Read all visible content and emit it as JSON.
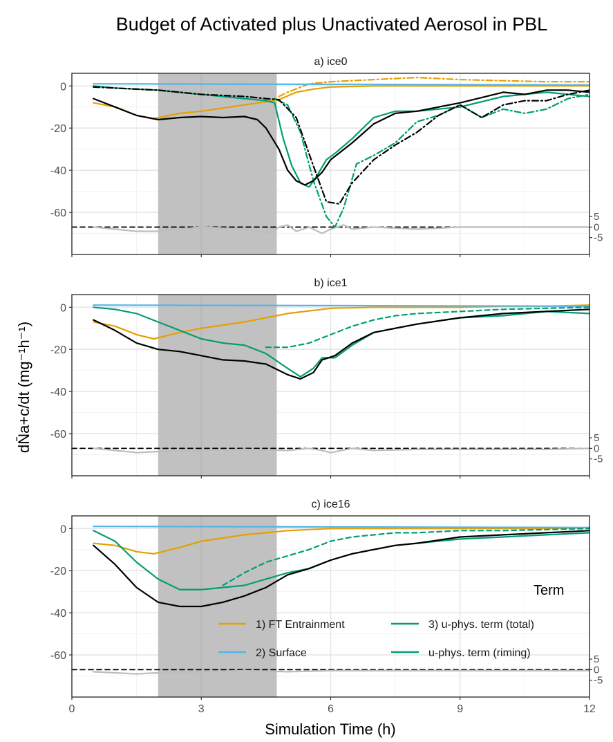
{
  "title": "Budget of Activated plus Unactivated Aerosol in PBL",
  "xlabel": "Simulation Time (h)",
  "ylabel": "dN̄a+c/dt (mg⁻¹h⁻¹)",
  "colors": {
    "ft_entrainment": "#E69F00",
    "surface": "#56B4E9",
    "uphys": "#009E73",
    "total": "#000000",
    "residual": "#bdbdbd",
    "shade": "#bebebe"
  },
  "legend": {
    "title": "Term",
    "entries": [
      {
        "label": "1) FT Entrainment",
        "color": "#E69F00"
      },
      {
        "label": "3) u-phys. term (total)",
        "color": "#009E73"
      },
      {
        "label": "2) Surface",
        "color": "#56B4E9"
      },
      {
        "label": "u-phys. term (riming)",
        "color": "#009E73"
      }
    ]
  },
  "chart_data": [
    {
      "type": "line",
      "title": "a) ice0",
      "xlim": [
        0,
        12
      ],
      "ylim": [
        -80,
        6
      ],
      "xticks": [
        "0",
        "3",
        "6",
        "9",
        "12"
      ],
      "yticks": [
        "0",
        "-20",
        "-40",
        "-60"
      ],
      "right_ticks": [
        "5",
        "0",
        "-5"
      ],
      "shade": [
        2,
        4.75
      ],
      "series": [
        {
          "key": "ft",
          "color": "#E69F00",
          "dash": "solid",
          "x": [
            0.5,
            1,
            1.5,
            1.9,
            2.5,
            3,
            3.5,
            4,
            4.5,
            4.8,
            5.2,
            5.6,
            6,
            7,
            8,
            9,
            10,
            12
          ],
          "y": [
            -8,
            -10,
            -14,
            -15.5,
            -13,
            -12,
            -10.5,
            -9,
            -7.5,
            -6.5,
            -3,
            -1.5,
            -0.5,
            0,
            0,
            0,
            0,
            0
          ]
        },
        {
          "key": "ft_dash",
          "color": "#E69F00",
          "dash": "dashdot",
          "x": [
            4.8,
            5,
            5.5,
            6,
            7,
            7.5,
            8,
            9,
            10,
            11,
            12
          ],
          "y": [
            -5,
            -3,
            1,
            2,
            3,
            3.5,
            4,
            3,
            2.5,
            2,
            2
          ]
        },
        {
          "key": "surf",
          "color": "#56B4E9",
          "dash": "solid",
          "x": [
            0.5,
            12
          ],
          "y": [
            1,
            0.5
          ]
        },
        {
          "key": "uphys",
          "color": "#009E73",
          "dash": "solid",
          "x": [
            0.5,
            1,
            2,
            3,
            4,
            4.5,
            4.7,
            4.9,
            5.1,
            5.3,
            5.5,
            5.7,
            5.9,
            6.1,
            6.5,
            7,
            7.5,
            8,
            9,
            10,
            11,
            12
          ],
          "y": [
            0,
            -1,
            -2,
            -4,
            -6,
            -7,
            -8,
            -25,
            -38,
            -46,
            -48,
            -42,
            -35,
            -32,
            -25,
            -15,
            -12,
            -12,
            -10,
            -5,
            -3,
            -5
          ]
        },
        {
          "key": "uphys_dash",
          "color": "#009E73",
          "dash": "dashdot",
          "x": [
            4.7,
            5,
            5.3,
            5.6,
            5.9,
            6.1,
            6.3,
            6.6,
            7,
            7.5,
            8,
            8.5,
            9,
            9.5,
            10,
            10.5,
            11,
            11.5,
            12
          ],
          "y": [
            -6,
            -9,
            -22,
            -45,
            -62,
            -67,
            -58,
            -37,
            -33,
            -27,
            -17,
            -14,
            -9,
            -15,
            -11,
            -13,
            -11,
            -6,
            -4
          ]
        },
        {
          "key": "total",
          "color": "#000000",
          "dash": "solid",
          "x": [
            0.5,
            1,
            1.5,
            2,
            2.5,
            3,
            3.5,
            4,
            4.3,
            4.5,
            4.8,
            5,
            5.2,
            5.4,
            5.6,
            5.8,
            6,
            6.5,
            7,
            7.5,
            8,
            9,
            10,
            10.5,
            11,
            11.5,
            12
          ],
          "y": [
            -6,
            -10,
            -14,
            -16,
            -15,
            -14.5,
            -15,
            -14.5,
            -16,
            -20,
            -30,
            -40,
            -45,
            -47,
            -45,
            -41,
            -35,
            -27,
            -18,
            -13,
            -12,
            -8,
            -3,
            -4,
            -2,
            -2,
            -3
          ]
        },
        {
          "key": "total_dash",
          "color": "#000000",
          "dash": "dashdot",
          "x": [
            0.5,
            2,
            3,
            4,
            4.5,
            4.8,
            5.2,
            5.6,
            5.9,
            6.2,
            6.5,
            7,
            7.5,
            8,
            8.5,
            9,
            9.5,
            10,
            10.5,
            11,
            11.5,
            12
          ],
          "y": [
            -0.5,
            -2,
            -4,
            -5,
            -6,
            -6.5,
            -15,
            -38,
            -55,
            -56,
            -46,
            -35,
            -28,
            -22,
            -14,
            -9,
            -15,
            -9,
            -7,
            -7,
            -4,
            -2
          ]
        },
        {
          "key": "zero",
          "color": "#000000",
          "dash": "dashed",
          "x": [
            0,
            12
          ],
          "y": [
            -67,
            -67
          ]
        },
        {
          "key": "resid",
          "color": "#bdbdbd",
          "dash": "solid",
          "x": [
            0.5,
            1,
            1.5,
            2,
            3,
            4,
            4.6,
            4.8,
            5,
            5.2,
            5.5,
            5.8,
            6,
            6.3,
            6.5,
            7,
            8,
            9,
            10,
            11,
            12
          ],
          "y": [
            -67,
            -68,
            -69,
            -69,
            -67,
            -68,
            -70,
            -67,
            -66,
            -69,
            -67,
            -70,
            -68,
            -66,
            -68,
            -67,
            -68,
            -67,
            -67,
            -67,
            -67
          ]
        }
      ]
    },
    {
      "type": "line",
      "title": "b) ice1",
      "xlim": [
        0,
        12
      ],
      "ylim": [
        -80,
        6
      ],
      "xticks": [
        "0",
        "3",
        "6",
        "9",
        "12"
      ],
      "yticks": [
        "0",
        "-20",
        "-40",
        "-60"
      ],
      "right_ticks": [
        "5",
        "0",
        "-5"
      ],
      "shade": [
        2,
        4.75
      ],
      "series": [
        {
          "key": "ft",
          "color": "#E69F00",
          "dash": "solid",
          "x": [
            0.5,
            1,
            1.5,
            1.9,
            2.5,
            3,
            4,
            5,
            6,
            7,
            8,
            9,
            10,
            11,
            12
          ],
          "y": [
            -7,
            -9,
            -13,
            -15,
            -12,
            -10,
            -7,
            -3,
            -0.5,
            0,
            0,
            0,
            0.5,
            0.5,
            1
          ]
        },
        {
          "key": "surf",
          "color": "#56B4E9",
          "dash": "solid",
          "x": [
            0.5,
            12
          ],
          "y": [
            1,
            0.5
          ]
        },
        {
          "key": "uphys",
          "color": "#009E73",
          "dash": "solid",
          "x": [
            0.5,
            1,
            1.5,
            2,
            2.5,
            3,
            3.5,
            4,
            4.5,
            5,
            5.3,
            5.6,
            5.8,
            6.1,
            6.5,
            7,
            7.5,
            8,
            9,
            10,
            11,
            12
          ],
          "y": [
            0,
            -1,
            -3,
            -7,
            -11,
            -15,
            -17,
            -18,
            -22,
            -29,
            -33,
            -29,
            -24,
            -24,
            -18,
            -12,
            -10,
            -8,
            -5,
            -4,
            -2,
            -3
          ]
        },
        {
          "key": "uphys_dash",
          "color": "#009E73",
          "dash": "dashed",
          "x": [
            4.5,
            5,
            5.5,
            6,
            6.5,
            7,
            7.5,
            8,
            9,
            10,
            11,
            12
          ],
          "y": [
            -19,
            -19,
            -17,
            -13,
            -9,
            -6,
            -4,
            -3,
            -2,
            -1,
            -0.5,
            0
          ]
        },
        {
          "key": "total",
          "color": "#000000",
          "dash": "solid",
          "x": [
            0.5,
            1,
            1.5,
            2,
            2.5,
            3,
            3.5,
            4,
            4.5,
            5,
            5.3,
            5.6,
            5.8,
            6.1,
            6.5,
            7,
            7.5,
            8,
            9,
            10,
            11,
            12
          ],
          "y": [
            -6,
            -11,
            -17,
            -20,
            -21,
            -23,
            -25,
            -25.5,
            -27,
            -32,
            -34,
            -31,
            -25,
            -23,
            -17,
            -12,
            -10,
            -8,
            -5,
            -3,
            -2,
            -1
          ]
        },
        {
          "key": "zero",
          "color": "#000000",
          "dash": "dashed",
          "x": [
            0,
            12
          ],
          "y": [
            -67,
            -67
          ]
        },
        {
          "key": "resid",
          "color": "#bdbdbd",
          "dash": "solid",
          "x": [
            0.5,
            1,
            1.5,
            2,
            3,
            4,
            5,
            5.5,
            5.8,
            6,
            6.5,
            7,
            8,
            9,
            10,
            11,
            12
          ],
          "y": [
            -67,
            -68,
            -69,
            -68.5,
            -68,
            -67.5,
            -68,
            -67,
            -68,
            -69,
            -67,
            -68,
            -67.5,
            -67.5,
            -67.5,
            -67.5,
            -67
          ]
        }
      ]
    },
    {
      "type": "line",
      "title": "c) ice16",
      "xlim": [
        0,
        12
      ],
      "ylim": [
        -80,
        6
      ],
      "xticks": [
        "0",
        "3",
        "6",
        "9",
        "12"
      ],
      "yticks": [
        "0",
        "-20",
        "-40",
        "-60"
      ],
      "right_ticks": [
        "5",
        "0",
        "-5"
      ],
      "shade": [
        2,
        4.75
      ],
      "series": [
        {
          "key": "ft",
          "color": "#E69F00",
          "dash": "solid",
          "x": [
            0.5,
            1,
            1.5,
            1.9,
            2.5,
            3,
            4,
            5,
            6,
            7,
            8,
            9,
            10,
            11,
            12
          ],
          "y": [
            -7,
            -8,
            -11,
            -12,
            -9,
            -6,
            -3,
            -1,
            0,
            0,
            0,
            0,
            0,
            0,
            0.5
          ]
        },
        {
          "key": "surf",
          "color": "#56B4E9",
          "dash": "solid",
          "x": [
            0.5,
            12
          ],
          "y": [
            1,
            0.5
          ]
        },
        {
          "key": "uphys",
          "color": "#009E73",
          "dash": "solid",
          "x": [
            0.5,
            1,
            1.5,
            2,
            2.5,
            3,
            3.5,
            4,
            4.5,
            5,
            5.5,
            6,
            6.5,
            7,
            7.5,
            8,
            9,
            10,
            11,
            12
          ],
          "y": [
            -1,
            -6,
            -16,
            -24,
            -29,
            -29,
            -28,
            -27,
            -24,
            -21,
            -19,
            -15,
            -12,
            -10,
            -8,
            -7,
            -5,
            -4,
            -3,
            -2
          ]
        },
        {
          "key": "uphys_dash",
          "color": "#009E73",
          "dash": "dashed",
          "x": [
            3.5,
            4,
            4.5,
            5,
            5.5,
            6,
            6.5,
            7,
            7.5,
            8,
            9,
            10,
            11,
            12
          ],
          "y": [
            -27,
            -21,
            -16,
            -13,
            -10,
            -6,
            -4,
            -3,
            -2,
            -2,
            -1,
            -1,
            -0.5,
            0
          ]
        },
        {
          "key": "total",
          "color": "#000000",
          "dash": "solid",
          "x": [
            0.5,
            1,
            1.5,
            2,
            2.5,
            3,
            3.5,
            4,
            4.5,
            5,
            5.5,
            6,
            6.5,
            7,
            7.5,
            8,
            9,
            10,
            11,
            12
          ],
          "y": [
            -8,
            -17,
            -28,
            -35,
            -37,
            -37,
            -35,
            -32,
            -28,
            -22,
            -19,
            -15,
            -12,
            -10,
            -8,
            -7,
            -4,
            -3,
            -2,
            -1
          ]
        },
        {
          "key": "zero",
          "color": "#000000",
          "dash": "dashed",
          "x": [
            0,
            12
          ],
          "y": [
            -67,
            -67
          ]
        },
        {
          "key": "resid",
          "color": "#bdbdbd",
          "dash": "solid",
          "x": [
            0.5,
            1,
            1.5,
            2,
            3,
            4,
            5,
            6,
            7,
            8,
            9,
            10,
            11,
            12
          ],
          "y": [
            -68,
            -68.5,
            -69,
            -68.5,
            -68,
            -67.5,
            -68,
            -67.5,
            -67.5,
            -67.5,
            -67.5,
            -67.5,
            -67.5,
            -67.5
          ]
        }
      ]
    }
  ]
}
